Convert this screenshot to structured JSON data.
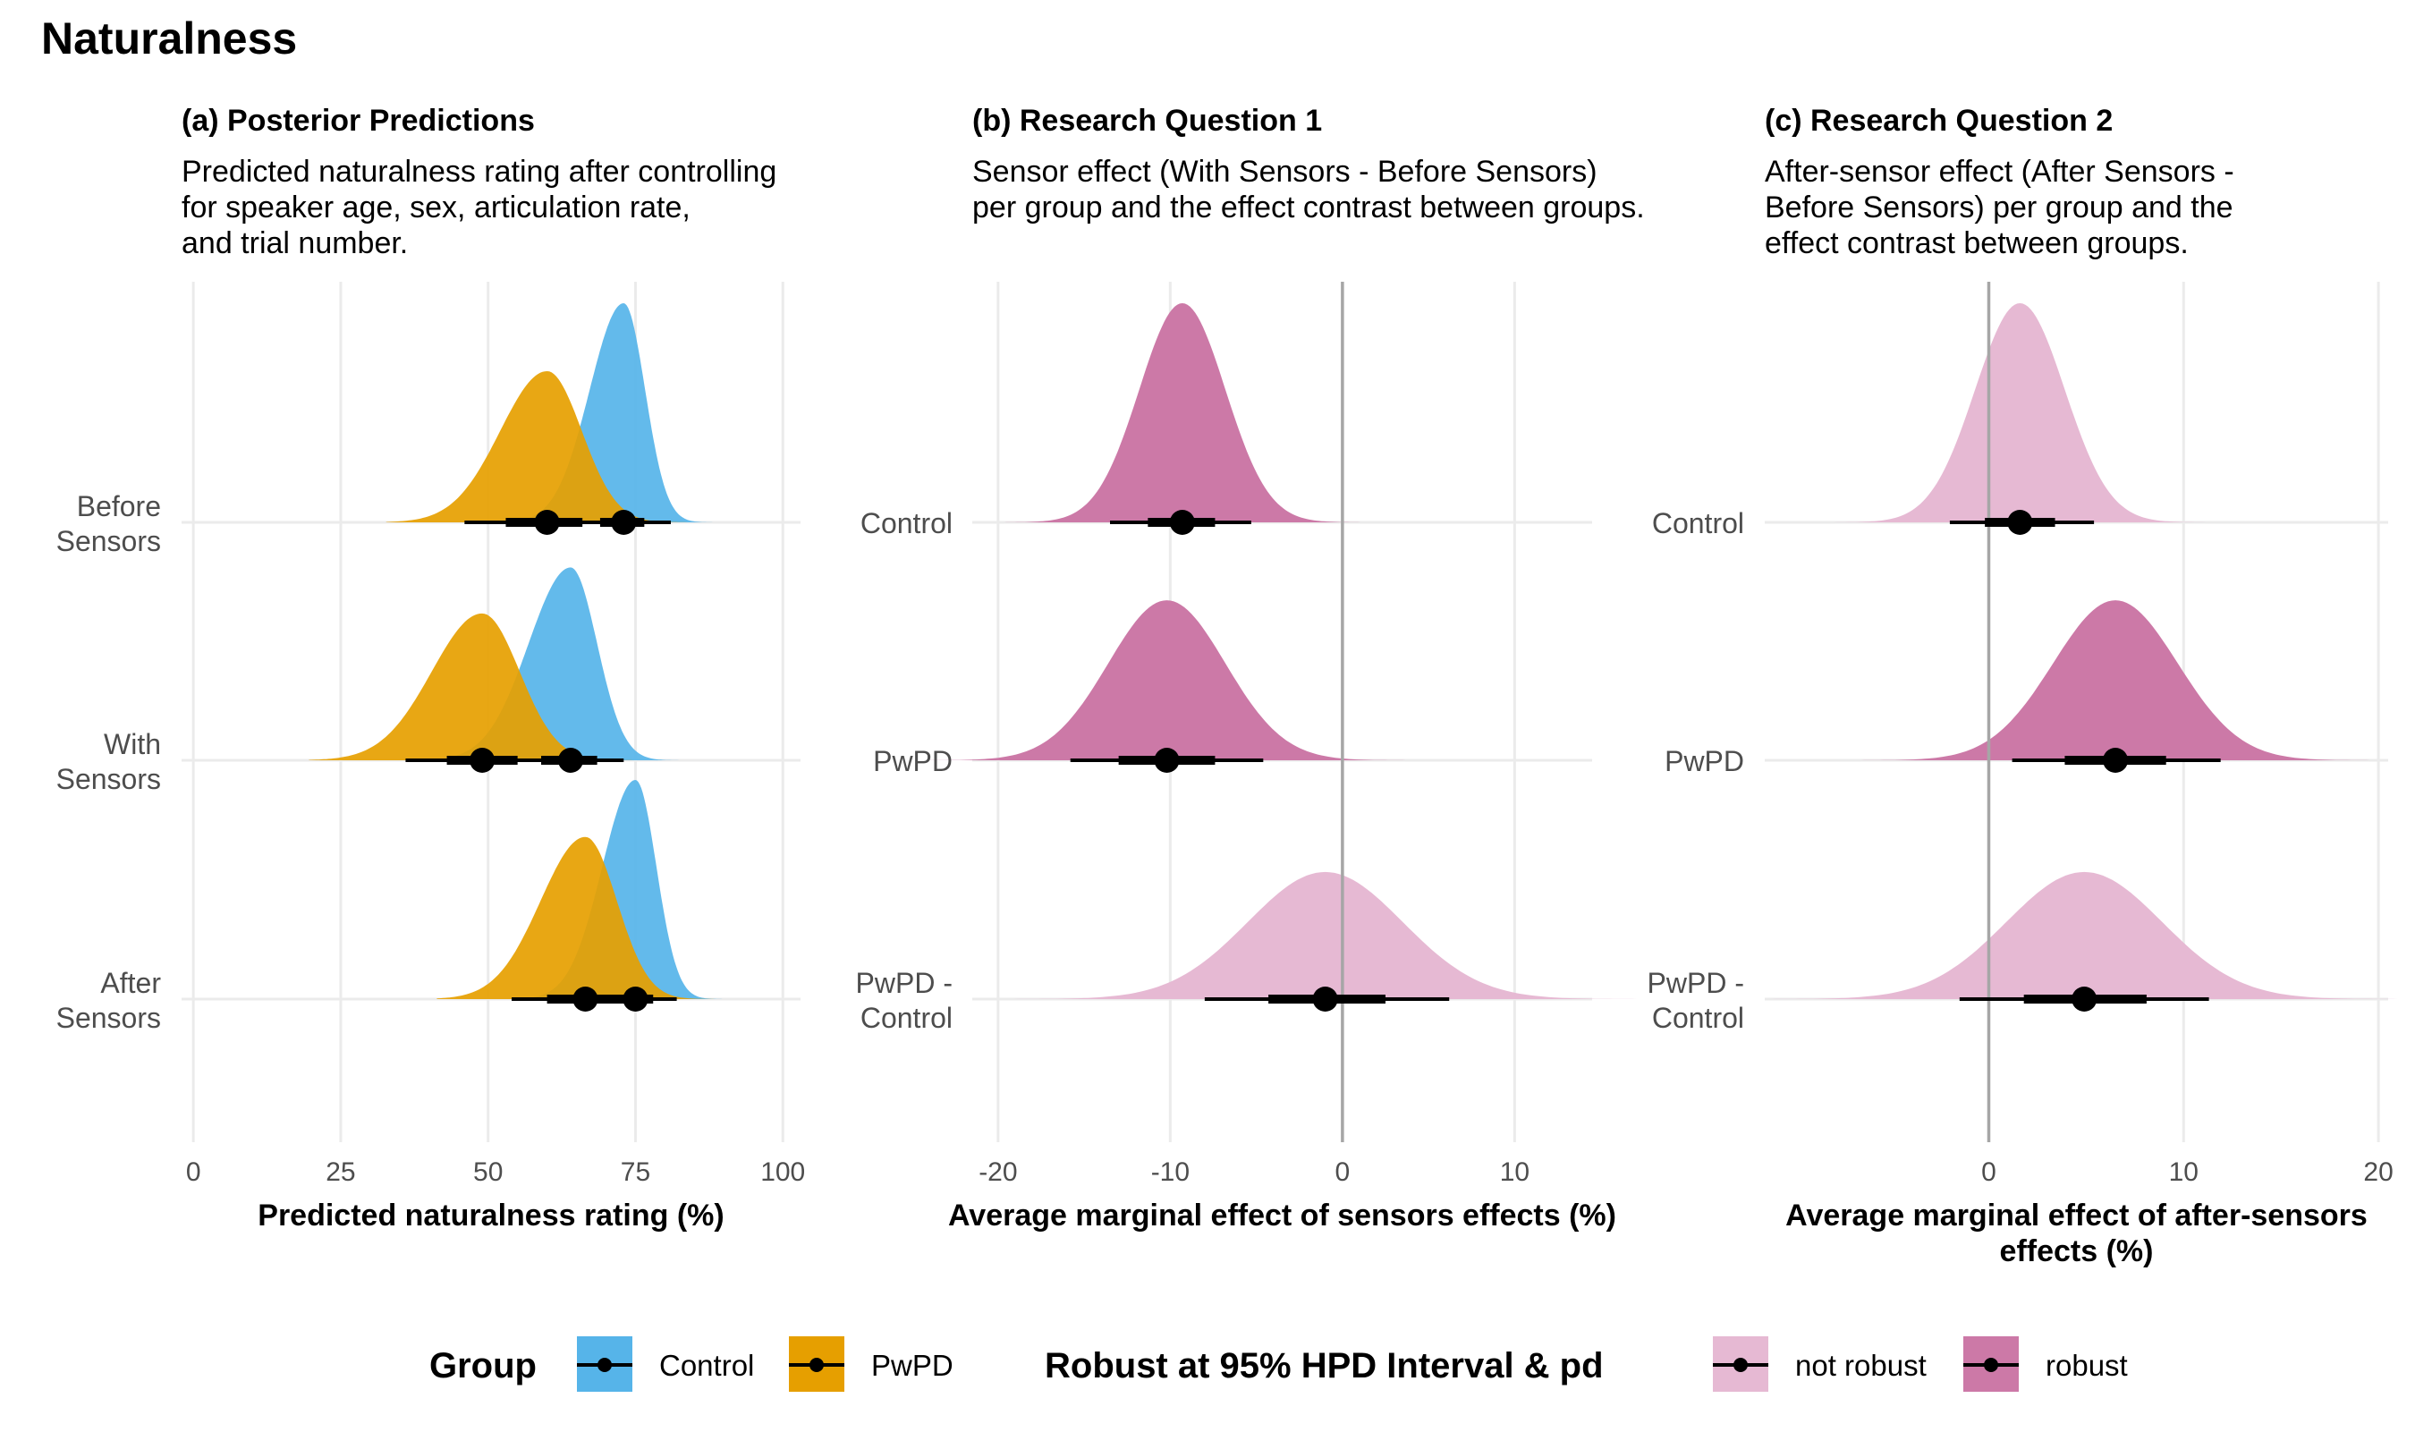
{
  "title": "Naturalness",
  "colors": {
    "control": "#56B4E9",
    "pwpd": "#E69F00",
    "robust": "#CC79A7",
    "not_robust": "#E6B9D3",
    "grid": "#EBEBEB",
    "zero_line": "#A6A6A6"
  },
  "chart_data": [
    {
      "id": "a",
      "type": "density",
      "panel_title": "(a) Posterior Predictions",
      "subtitle": [
        "Predicted naturalness rating after controlling",
        "for speaker age, sex, articulation rate,",
        "and trial number."
      ],
      "xlabel": [
        "Predicted naturalness rating (%)"
      ],
      "xlim": [
        -2,
        103
      ],
      "xticks": [
        0,
        25,
        50,
        75,
        100
      ],
      "zero_line": false,
      "categories": [
        "Before\nSensors",
        "With\nSensors",
        "After\nSensors"
      ],
      "series": [
        {
          "group": "Before Sensors",
          "color_key": "control",
          "mean": 73,
          "sd": 4.2,
          "skew": -0.45,
          "height": 1.0,
          "median": 73,
          "hpd66": [
            69,
            76.5
          ],
          "hpd95": [
            65,
            81
          ]
        },
        {
          "group": "Before Sensors",
          "color_key": "pwpd",
          "mean": 60,
          "sd": 6.5,
          "skew": -0.3,
          "height": 0.69,
          "median": 60,
          "hpd66": [
            53,
            66
          ],
          "hpd95": [
            46,
            74
          ]
        },
        {
          "group": "With Sensors",
          "color_key": "control",
          "mean": 64,
          "sd": 5.2,
          "skew": -0.45,
          "height": 0.88,
          "median": 64,
          "hpd66": [
            59,
            68.5
          ],
          "hpd95": [
            54,
            73
          ]
        },
        {
          "group": "With Sensors",
          "color_key": "pwpd",
          "mean": 49,
          "sd": 7.0,
          "skew": -0.3,
          "height": 0.67,
          "median": 49,
          "hpd66": [
            43,
            55
          ],
          "hpd95": [
            36,
            62
          ]
        },
        {
          "group": "After Sensors",
          "color_key": "control",
          "mean": 75,
          "sd": 4.1,
          "skew": -0.45,
          "height": 1.0,
          "median": 75,
          "hpd66": [
            71,
            78
          ],
          "hpd95": [
            67,
            82
          ]
        },
        {
          "group": "After Sensors",
          "color_key": "pwpd",
          "mean": 66.5,
          "sd": 6.0,
          "skew": -0.35,
          "height": 0.74,
          "median": 66.5,
          "hpd66": [
            60,
            72
          ],
          "hpd95": [
            54,
            78
          ]
        }
      ]
    },
    {
      "id": "b",
      "type": "density",
      "panel_title": "(b) Research Question 1",
      "subtitle": [
        "Sensor effect (With Sensors - Before Sensors)",
        "per group and the effect contrast between groups."
      ],
      "xlabel": [
        "Average marginal effect of sensors effects (%)"
      ],
      "xlim": [
        -21.5,
        14.5
      ],
      "xticks": [
        -20,
        -10,
        0,
        10
      ],
      "zero_line": true,
      "categories": [
        "Control",
        "PwPD",
        "PwPD -\nControl"
      ],
      "series": [
        {
          "group": "Control",
          "color_key": "robust",
          "mean": -9.3,
          "sd": 2.5,
          "skew": 0,
          "height": 1.0,
          "median": -9.3,
          "hpd66": [
            -11.3,
            -7.4
          ],
          "hpd95": [
            -13.5,
            -5.3
          ]
        },
        {
          "group": "PwPD",
          "color_key": "robust",
          "mean": -10.2,
          "sd": 3.4,
          "skew": 0,
          "height": 0.73,
          "median": -10.2,
          "hpd66": [
            -13,
            -7.4
          ],
          "hpd95": [
            -15.8,
            -4.6
          ]
        },
        {
          "group": "PwPD - Control",
          "color_key": "not_robust",
          "mean": -1,
          "sd": 4.5,
          "skew": 0,
          "height": 0.58,
          "median": -1,
          "hpd66": [
            -4.3,
            2.5
          ],
          "hpd95": [
            -8,
            6.2
          ]
        }
      ]
    },
    {
      "id": "c",
      "type": "density",
      "panel_title": "(c) Research Question 2",
      "subtitle": [
        "After-sensor effect (After Sensors -",
        "Before Sensors) per group and the",
        "effect contrast between groups."
      ],
      "xlabel": [
        "Average marginal effect of after-sensors",
        "effects (%)"
      ],
      "xlim": [
        -11.5,
        20.5
      ],
      "xticks": [
        0,
        10,
        20
      ],
      "xtick_labels": [
        "0",
        "10",
        "20"
      ],
      "zero_line": true,
      "categories": [
        "Control",
        "PwPD",
        "PwPD -\nControl"
      ],
      "series": [
        {
          "group": "Control",
          "color_key": "not_robust",
          "mean": 1.6,
          "sd": 2.3,
          "skew": 0,
          "height": 1.0,
          "median": 1.6,
          "hpd66": [
            -0.2,
            3.4
          ],
          "hpd95": [
            -2,
            5.4
          ]
        },
        {
          "group": "PwPD",
          "color_key": "robust",
          "mean": 6.5,
          "sd": 3.2,
          "skew": 0,
          "height": 0.73,
          "median": 6.5,
          "hpd66": [
            3.9,
            9.1
          ],
          "hpd95": [
            1.2,
            11.9
          ]
        },
        {
          "group": "PwPD - Control",
          "color_key": "not_robust",
          "mean": 4.9,
          "sd": 4.0,
          "skew": 0,
          "height": 0.58,
          "median": 4.9,
          "hpd66": [
            1.8,
            8.1
          ],
          "hpd95": [
            -1.5,
            11.3
          ]
        }
      ]
    }
  ],
  "legends": [
    {
      "title": "Group",
      "items": [
        {
          "label": "Control",
          "color_key": "control"
        },
        {
          "label": "PwPD",
          "color_key": "pwpd"
        }
      ]
    },
    {
      "title": "Robust at 95% HPD Interval & pd",
      "items": [
        {
          "label": "not robust",
          "color_key": "not_robust"
        },
        {
          "label": "robust",
          "color_key": "robust"
        }
      ]
    }
  ]
}
